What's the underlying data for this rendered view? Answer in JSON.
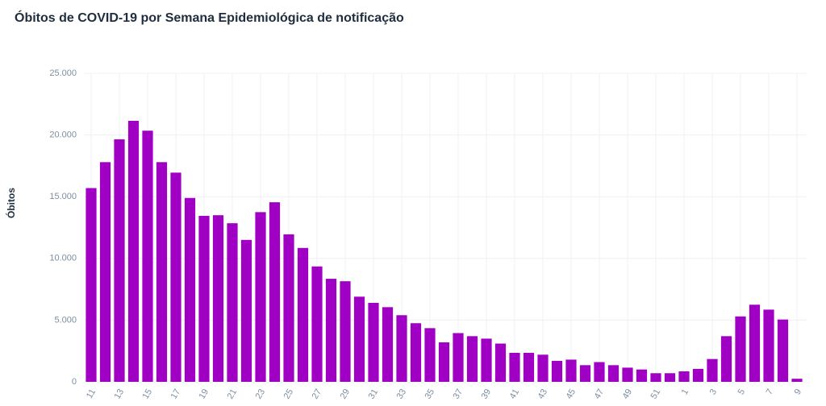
{
  "chart_data": {
    "type": "bar",
    "title": "Óbitos de COVID-19 por Semana Epidemiológica de notificação",
    "y_label": "Óbitos",
    "categories": [
      "11",
      null,
      "13",
      null,
      "15",
      null,
      "17",
      null,
      "19",
      null,
      "21",
      null,
      "23",
      null,
      "25",
      null,
      "27",
      null,
      "29",
      null,
      "31",
      null,
      "33",
      null,
      "35",
      null,
      "37",
      null,
      "39",
      null,
      "41",
      null,
      "43",
      null,
      "45",
      null,
      "47",
      null,
      "49",
      null,
      "51",
      null,
      "1",
      null,
      "3",
      null,
      "5",
      null,
      "7",
      null,
      "9"
    ],
    "values": [
      15700,
      17800,
      19650,
      21150,
      20350,
      17800,
      16950,
      14900,
      13450,
      13500,
      12850,
      11500,
      13750,
      14550,
      11950,
      10850,
      9350,
      8350,
      8150,
      6900,
      6400,
      6050,
      5400,
      4750,
      4350,
      3200,
      3950,
      3700,
      3500,
      3100,
      2350,
      2350,
      2200,
      1700,
      1800,
      1350,
      1600,
      1350,
      1150,
      1000,
      700,
      700,
      850,
      1050,
      1850,
      3700,
      5300,
      6250,
      5850,
      5050,
      250
    ],
    "color": "#a000c4",
    "ylim": [
      0,
      25000
    ],
    "yticks": [
      {
        "value": 0,
        "label": "0"
      },
      {
        "value": 5000,
        "label": "5.000"
      },
      {
        "value": 10000,
        "label": "10.000"
      },
      {
        "value": 15000,
        "label": "15.000"
      },
      {
        "value": 20000,
        "label": "20.000"
      },
      {
        "value": 25000,
        "label": "25.000"
      }
    ],
    "grid": true
  }
}
